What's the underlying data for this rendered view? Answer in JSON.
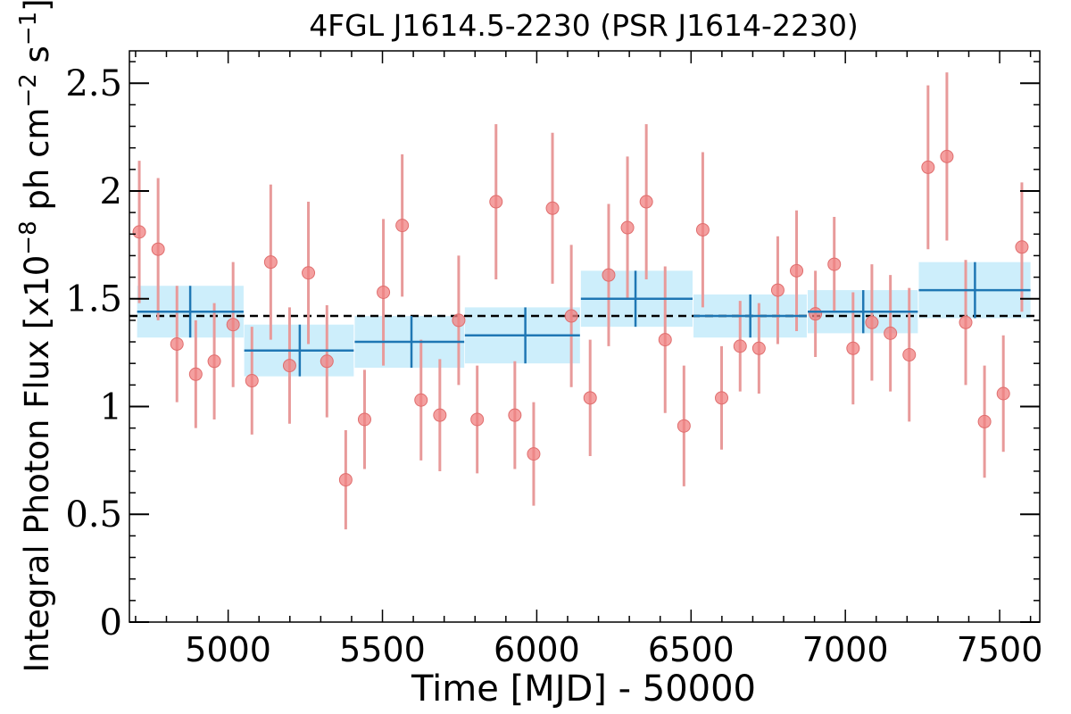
{
  "chart_data": {
    "type": "scatter",
    "title": "4FGL J1614.5-2230 (PSR J1614-2230)",
    "xlabel": "Time [MJD] - 50000",
    "ylabel": "Integral Photon Flux [x10^-8 ph cm^-2 s^-1]",
    "ylabel_parts": {
      "prefix": "Integral Photon Flux [x10",
      "exp1": "−8",
      "mid": " ph cm",
      "exp2": "−2",
      "mid2": " s",
      "exp3": "−1",
      "suffix": "]"
    },
    "xlim": [
      4680,
      7630
    ],
    "ylim": [
      0,
      2.65
    ],
    "xticks": [
      5000,
      5500,
      6000,
      6500,
      7000,
      7500
    ],
    "yticks": [
      0,
      0.5,
      1,
      1.5,
      2,
      2.5
    ],
    "ytick_labels": [
      "0",
      "0.5",
      "1",
      "1.5",
      "2",
      "2.5"
    ],
    "grid": false,
    "reference_line": {
      "y": 1.42,
      "style": "dashed",
      "color": "#000000"
    },
    "colors": {
      "points": "#f08080",
      "error_bars": "#e89a9a",
      "bins": "#1f77b4",
      "bin_band": "#cdeefb"
    },
    "series": [
      {
        "kind": "points",
        "x": [
          4712,
          4773,
          4834,
          4895,
          4955,
          5016,
          5077,
          5138,
          5199,
          5260,
          5320,
          5381,
          5442,
          5503,
          5564,
          5625,
          5686,
          5747,
          5807,
          5868,
          5929,
          5990,
          6051,
          6112,
          6173,
          6233,
          6294,
          6355,
          6416,
          6477,
          6538,
          6599,
          6659,
          6720,
          6781,
          6842,
          6903,
          6964,
          7025,
          7086,
          7146,
          7207,
          7268,
          7329,
          7390,
          7451,
          7512,
          7572
        ],
        "y": [
          1.81,
          1.73,
          1.29,
          1.15,
          1.21,
          1.38,
          1.12,
          1.67,
          1.19,
          1.62,
          1.21,
          0.66,
          0.94,
          1.53,
          1.84,
          1.03,
          0.96,
          1.4,
          0.94,
          1.95,
          0.96,
          0.78,
          1.92,
          1.42,
          1.04,
          1.61,
          1.83,
          1.95,
          1.31,
          0.91,
          1.82,
          1.04,
          1.28,
          1.27,
          1.54,
          1.63,
          1.43,
          1.66,
          1.27,
          1.39,
          1.34,
          1.24,
          2.11,
          2.16,
          1.39,
          0.93,
          1.06,
          1.74
        ],
        "y_err": [
          0.33,
          0.33,
          0.27,
          0.25,
          0.27,
          0.29,
          0.25,
          0.36,
          0.27,
          0.33,
          0.26,
          0.23,
          0.23,
          0.34,
          0.33,
          0.28,
          0.26,
          0.3,
          0.25,
          0.36,
          0.25,
          0.24,
          0.35,
          0.33,
          0.27,
          0.33,
          0.33,
          0.36,
          0.34,
          0.28,
          0.36,
          0.24,
          0.21,
          0.21,
          0.25,
          0.28,
          0.2,
          0.22,
          0.26,
          0.27,
          0.27,
          0.31,
          0.38,
          0.39,
          0.29,
          0.26,
          0.27,
          0.3
        ]
      },
      {
        "kind": "binned",
        "x": [
          4877,
          5232,
          5594,
          5963,
          6320,
          6692,
          7058,
          7420
        ],
        "x_lo": [
          4705,
          5052,
          5410,
          5767,
          6143,
          6508,
          6878,
          7238
        ],
        "x_hi": [
          5050,
          5407,
          5765,
          6140,
          6505,
          6875,
          7235,
          7600
        ],
        "y": [
          1.44,
          1.26,
          1.3,
          1.33,
          1.5,
          1.42,
          1.44,
          1.54
        ],
        "y_err": [
          0.12,
          0.12,
          0.12,
          0.13,
          0.13,
          0.1,
          0.1,
          0.13
        ]
      }
    ]
  }
}
